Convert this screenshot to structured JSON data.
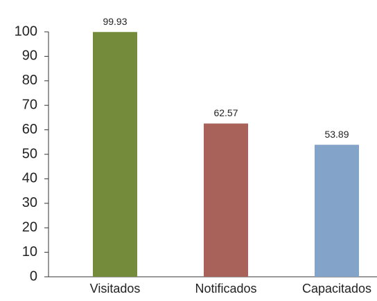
{
  "chart_data": {
    "type": "bar",
    "categories": [
      "Visitados",
      "Notificados",
      "Capacitados"
    ],
    "values": [
      99.93,
      62.57,
      53.89
    ],
    "colors": [
      "#738b3a",
      "#a9625a",
      "#83a3c8"
    ],
    "ylim": [
      0,
      100
    ],
    "yticks": [
      0,
      10,
      20,
      30,
      40,
      50,
      60,
      70,
      80,
      90,
      100
    ],
    "grid": false
  }
}
